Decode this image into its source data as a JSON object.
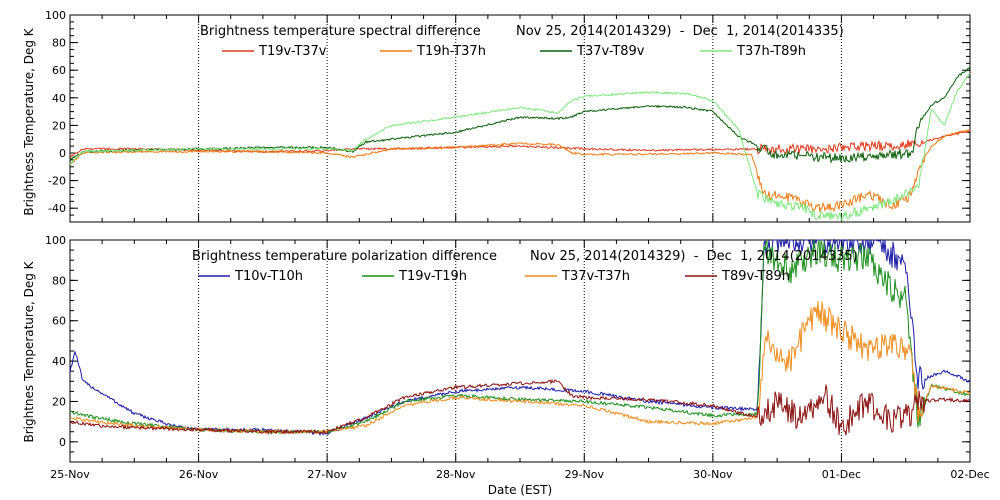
{
  "chart_data": [
    {
      "type": "line",
      "title": "Brightness temperature spectral difference",
      "date_range": "Nov 25, 2014(2014329)  -  Dec  1, 2014(2014335)",
      "ylabel": "Brightness Temperature, Deg K",
      "ylim": [
        -50,
        100
      ],
      "yticks": [
        -40,
        -20,
        0,
        20,
        40,
        60,
        80,
        100
      ],
      "x_day_range": [
        0,
        7
      ],
      "series": [
        {
          "name": "T19v-T37v",
          "color": "#e03a1e",
          "points": [
            [
              0,
              -3
            ],
            [
              0.1,
              3
            ],
            [
              0.5,
              3
            ],
            [
              1,
              2
            ],
            [
              1.5,
              1
            ],
            [
              2,
              1.5
            ],
            [
              2.2,
              3
            ],
            [
              2.5,
              3
            ],
            [
              3,
              4
            ],
            [
              3.5,
              5
            ],
            [
              4,
              3
            ],
            [
              4.5,
              2
            ],
            [
              5,
              2.5
            ],
            [
              5.4,
              3
            ],
            [
              5.8,
              3
            ],
            [
              6,
              4
            ],
            [
              6.3,
              5
            ],
            [
              6.6,
              7
            ],
            [
              6.8,
              12
            ],
            [
              7,
              16
            ]
          ]
        },
        {
          "name": "T19h-T37h",
          "color": "#f07b14",
          "points": [
            [
              0,
              -8
            ],
            [
              0.1,
              0
            ],
            [
              0.5,
              1
            ],
            [
              1,
              1
            ],
            [
              1.5,
              1
            ],
            [
              2,
              0
            ],
            [
              2.2,
              -3
            ],
            [
              2.5,
              3
            ],
            [
              3,
              4
            ],
            [
              3.5,
              7
            ],
            [
              3.8,
              6
            ],
            [
              3.9,
              0
            ],
            [
              4,
              -1
            ],
            [
              4.5,
              -1
            ],
            [
              5,
              0
            ],
            [
              5.3,
              -1
            ],
            [
              5.4,
              -30
            ],
            [
              5.6,
              -32
            ],
            [
              5.8,
              -40
            ],
            [
              6,
              -38
            ],
            [
              6.2,
              -30
            ],
            [
              6.4,
              -38
            ],
            [
              6.55,
              -30
            ],
            [
              6.6,
              -10
            ],
            [
              6.7,
              5
            ],
            [
              6.8,
              12
            ],
            [
              7,
              17
            ]
          ]
        },
        {
          "name": "T37v-T89v",
          "color": "#0b5e0b",
          "points": [
            [
              0,
              -5
            ],
            [
              0.1,
              1
            ],
            [
              0.5,
              2
            ],
            [
              1,
              3
            ],
            [
              1.5,
              4
            ],
            [
              2,
              4
            ],
            [
              2.2,
              1
            ],
            [
              2.3,
              8
            ],
            [
              2.5,
              10
            ],
            [
              3,
              15
            ],
            [
              3.5,
              26
            ],
            [
              3.8,
              25
            ],
            [
              3.9,
              26
            ],
            [
              4,
              30
            ],
            [
              4.5,
              34
            ],
            [
              4.8,
              33
            ],
            [
              5.0,
              30
            ],
            [
              5.2,
              12
            ],
            [
              5.35,
              5
            ],
            [
              5.5,
              -2
            ],
            [
              5.7,
              -2
            ],
            [
              6,
              -4
            ],
            [
              6.3,
              -2
            ],
            [
              6.55,
              0
            ],
            [
              6.6,
              20
            ],
            [
              6.7,
              35
            ],
            [
              6.8,
              40
            ],
            [
              6.9,
              55
            ],
            [
              7,
              62
            ]
          ]
        },
        {
          "name": "T37h-T89h",
          "color": "#7fe87f",
          "points": [
            [
              0,
              -8
            ],
            [
              0.1,
              1
            ],
            [
              0.5,
              2
            ],
            [
              1,
              3
            ],
            [
              1.5,
              3
            ],
            [
              2,
              3
            ],
            [
              2.2,
              2
            ],
            [
              2.3,
              10
            ],
            [
              2.5,
              20
            ],
            [
              3,
              26
            ],
            [
              3.5,
              33
            ],
            [
              3.8,
              29
            ],
            [
              3.9,
              38
            ],
            [
              4,
              41
            ],
            [
              4.5,
              44
            ],
            [
              4.8,
              43
            ],
            [
              5.0,
              38
            ],
            [
              5.2,
              17
            ],
            [
              5.35,
              -30
            ],
            [
              5.5,
              -36
            ],
            [
              5.7,
              -40
            ],
            [
              5.8,
              -45
            ],
            [
              6,
              -46
            ],
            [
              6.3,
              -38
            ],
            [
              6.5,
              -30
            ],
            [
              6.6,
              -25
            ],
            [
              6.7,
              32
            ],
            [
              6.8,
              20
            ],
            [
              6.9,
              45
            ],
            [
              7,
              58
            ]
          ]
        }
      ]
    },
    {
      "type": "line",
      "title": "Brightness temperature polarization difference",
      "date_range": "Nov 25, 2014(2014329)  -  Dec  1, 2014(2014335)",
      "ylabel": "Brightnes Temperature, Deg K",
      "xlabel": "Date (EST)",
      "ylim": [
        -10,
        100
      ],
      "yticks": [
        0,
        20,
        40,
        60,
        80,
        100
      ],
      "x_day_range": [
        0,
        7
      ],
      "xticks": [
        "25-Nov",
        "26-Nov",
        "27-Nov",
        "28-Nov",
        "29-Nov",
        "30-Nov",
        "01-Dec",
        "02-Dec"
      ],
      "series": [
        {
          "name": "T10v-T10h",
          "color": "#1c1ca8",
          "points": [
            [
              0,
              35
            ],
            [
              0.04,
              45
            ],
            [
              0.1,
              30
            ],
            [
              0.3,
              22
            ],
            [
              0.5,
              14
            ],
            [
              0.8,
              8
            ],
            [
              1,
              6
            ],
            [
              1.5,
              6
            ],
            [
              2,
              4
            ],
            [
              2.3,
              12
            ],
            [
              2.6,
              20
            ],
            [
              3,
              25
            ],
            [
              3.5,
              27
            ],
            [
              4,
              25
            ],
            [
              4.5,
              20
            ],
            [
              5,
              17
            ],
            [
              5.35,
              16
            ],
            [
              5.4,
              100
            ],
            [
              5.7,
              100
            ],
            [
              6,
              100
            ],
            [
              6.3,
              100
            ],
            [
              6.5,
              85
            ],
            [
              6.6,
              30
            ],
            [
              6.8,
              35
            ],
            [
              7,
              30
            ]
          ]
        },
        {
          "name": "T19v-T19h",
          "color": "#1e901e",
          "points": [
            [
              0,
              15
            ],
            [
              0.2,
              12
            ],
            [
              0.5,
              9
            ],
            [
              1,
              6
            ],
            [
              1.5,
              5
            ],
            [
              2,
              5
            ],
            [
              2.3,
              10
            ],
            [
              2.6,
              20
            ],
            [
              3,
              23
            ],
            [
              3.5,
              21
            ],
            [
              4,
              20
            ],
            [
              4.5,
              17
            ],
            [
              5,
              13
            ],
            [
              5.35,
              14
            ],
            [
              5.4,
              95
            ],
            [
              5.6,
              85
            ],
            [
              5.8,
              95
            ],
            [
              6,
              90
            ],
            [
              6.2,
              92
            ],
            [
              6.4,
              75
            ],
            [
              6.5,
              70
            ],
            [
              6.6,
              10
            ],
            [
              6.7,
              28
            ],
            [
              7,
              23
            ]
          ]
        },
        {
          "name": "T37v-T37h",
          "color": "#f08c1e",
          "points": [
            [
              0,
              12
            ],
            [
              0.2,
              10
            ],
            [
              0.5,
              8
            ],
            [
              1,
              6
            ],
            [
              1.5,
              5
            ],
            [
              2,
              5
            ],
            [
              2.3,
              8
            ],
            [
              2.6,
              18
            ],
            [
              3,
              22
            ],
            [
              3.5,
              20
            ],
            [
              4,
              18
            ],
            [
              4.5,
              10
            ],
            [
              5,
              9
            ],
            [
              5.35,
              12
            ],
            [
              5.4,
              50
            ],
            [
              5.6,
              40
            ],
            [
              5.8,
              65
            ],
            [
              6,
              55
            ],
            [
              6.2,
              45
            ],
            [
              6.4,
              50
            ],
            [
              6.55,
              40
            ],
            [
              6.6,
              12
            ],
            [
              6.7,
              28
            ],
            [
              7,
              24
            ]
          ]
        },
        {
          "name": "T89v-T89h",
          "color": "#8b1010",
          "points": [
            [
              0,
              10
            ],
            [
              0.2,
              8
            ],
            [
              0.5,
              7
            ],
            [
              1,
              6
            ],
            [
              1.5,
              5
            ],
            [
              2,
              5
            ],
            [
              2.3,
              12
            ],
            [
              2.6,
              22
            ],
            [
              3,
              27
            ],
            [
              3.5,
              29
            ],
            [
              3.8,
              30
            ],
            [
              3.9,
              23
            ],
            [
              4,
              22
            ],
            [
              4.5,
              21
            ],
            [
              5,
              18
            ],
            [
              5.35,
              12
            ],
            [
              5.5,
              20
            ],
            [
              5.7,
              10
            ],
            [
              5.85,
              25
            ],
            [
              6,
              8
            ],
            [
              6.2,
              20
            ],
            [
              6.4,
              10
            ],
            [
              6.55,
              15
            ],
            [
              6.6,
              20
            ],
            [
              6.8,
              21
            ],
            [
              7,
              20
            ]
          ]
        }
      ]
    }
  ]
}
